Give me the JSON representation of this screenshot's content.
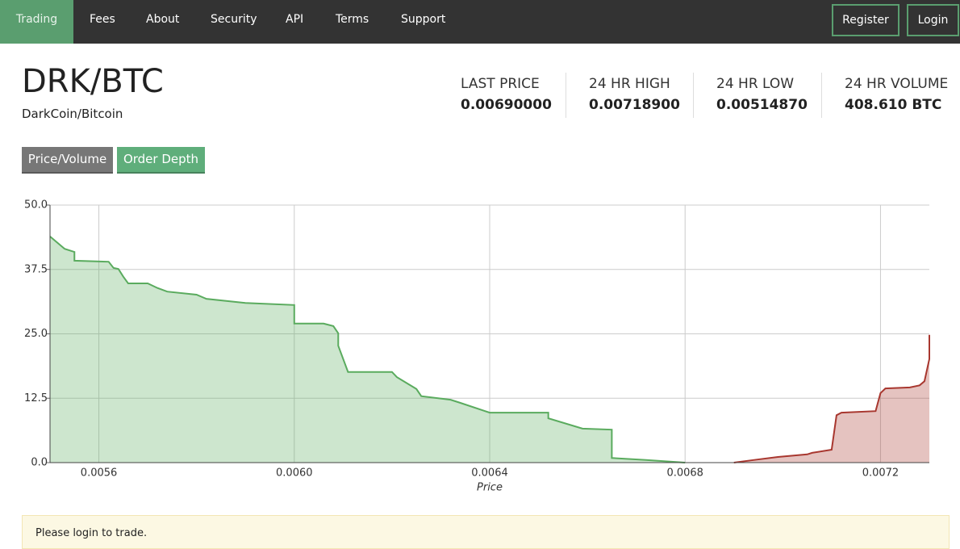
{
  "nav": {
    "items": [
      "Trading",
      "Fees",
      "About",
      "Security",
      "API",
      "Terms",
      "Support"
    ],
    "auth": [
      "Register",
      "Login"
    ]
  },
  "market": {
    "symbol": "DRK/BTC",
    "name": "DarkCoin/Bitcoin"
  },
  "stats": [
    {
      "label": "LAST PRICE",
      "value": "0.00690000"
    },
    {
      "label": "24 HR HIGH",
      "value": "0.00718900"
    },
    {
      "label": "24 HR LOW",
      "value": "0.00514870"
    },
    {
      "label": "24 HR VOLUME",
      "value": "408.610 BTC"
    }
  ],
  "tabs": [
    "Price/Volume",
    "Order Depth"
  ],
  "chart_data": {
    "type": "area",
    "xlabel": "Price",
    "xlim": [
      0.0055,
      0.0073
    ],
    "ylim": [
      0,
      50
    ],
    "xticks": [
      0.0056,
      {
        "value": 0.006,
        "label": "0.0060"
      },
      0.0064,
      0.0068,
      0.0072
    ],
    "yticks": [
      {
        "value": 0,
        "label": "0.0"
      },
      12.5,
      {
        "value": 25,
        "label": "25.0"
      },
      37.5,
      {
        "value": 50,
        "label": "50.0"
      }
    ],
    "grid": true,
    "series": [
      {
        "color": "#5aab5e",
        "x": [
          0.0055,
          0.00553,
          0.00555,
          0.00555,
          0.00562,
          0.00563,
          0.00564,
          0.00565,
          0.00566,
          0.0057,
          0.00572,
          0.00574,
          0.0058,
          0.00582,
          0.0059,
          0.006,
          0.006,
          0.00606,
          0.00608,
          0.00609,
          0.00609,
          0.00611,
          0.0062,
          0.00621,
          0.00625,
          0.00626,
          0.00632,
          0.00634,
          0.0064,
          0.00652,
          0.00652,
          0.00659,
          0.00665,
          0.00665,
          0.00672,
          0.0068
        ],
        "values": [
          43.9,
          41.5,
          40.9,
          39.2,
          39.0,
          37.8,
          37.6,
          36.1,
          34.8,
          34.8,
          33.9,
          33.2,
          32.6,
          31.8,
          31.0,
          30.6,
          27.0,
          27.0,
          26.5,
          25.1,
          22.7,
          17.6,
          17.6,
          16.6,
          14.3,
          12.9,
          12.2,
          11.6,
          9.7,
          9.7,
          8.6,
          6.6,
          6.4,
          0.9,
          0.5,
          0
        ]
      },
      {
        "color": "#a8372f",
        "x": [
          0.0069,
          0.00694,
          0.00699,
          0.00705,
          0.00706,
          0.0071,
          0.00711,
          0.00712,
          0.00719,
          0.0072,
          0.00721,
          0.00726,
          0.00728,
          0.00729,
          0.0073,
          0.0073
        ],
        "values": [
          0,
          0.5,
          1.1,
          1.6,
          1.9,
          2.5,
          9.2,
          9.7,
          10.0,
          13.5,
          14.4,
          14.6,
          15.0,
          15.8,
          20.1,
          24.8
        ]
      }
    ]
  },
  "alert": "Please login to trade."
}
